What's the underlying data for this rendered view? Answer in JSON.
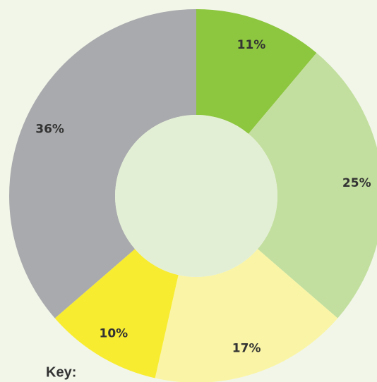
{
  "chart_data": {
    "type": "donut",
    "values": [
      11,
      25,
      17,
      10,
      36
    ],
    "value_labels": [
      "11%",
      "25%",
      "17%",
      "10%",
      "36%"
    ],
    "colors": [
      "#8dc63f",
      "#c3df9f",
      "#faf5a6",
      "#f8ec31",
      "#a9aaad"
    ],
    "key_title": "Key:"
  }
}
